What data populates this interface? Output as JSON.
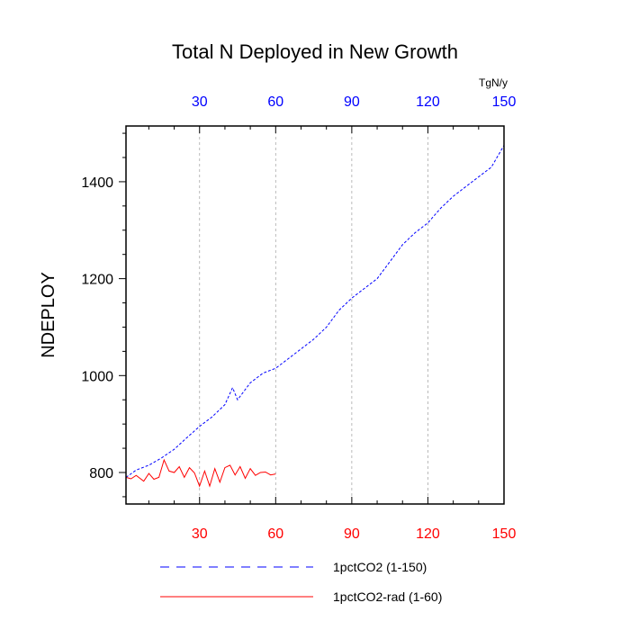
{
  "chart_data": {
    "type": "line",
    "title": "Total N Deployed in New Growth",
    "ylabel": "NDEPLOY",
    "xlabel": "",
    "top_unit_label": "TgN/y",
    "xlim": [
      1,
      150
    ],
    "ylim": [
      735,
      1515
    ],
    "grid": true,
    "top_ticks": [
      30,
      60,
      90,
      120,
      150
    ],
    "bottom_ticks": [
      30,
      60,
      90,
      120,
      150
    ],
    "left_ticks": [
      800,
      1000,
      1200,
      1400
    ],
    "legend_position": "bottom",
    "colors": {
      "series1": "#0000ff",
      "series2": "#ff0000"
    },
    "series": [
      {
        "name": "1pctCO2 (1-150)",
        "style": "dashed",
        "x": [
          1,
          5,
          10,
          15,
          20,
          25,
          30,
          35,
          40,
          43,
          45,
          50,
          55,
          60,
          65,
          70,
          75,
          80,
          85,
          90,
          95,
          100,
          105,
          110,
          115,
          120,
          125,
          130,
          135,
          140,
          145,
          150
        ],
        "y": [
          790,
          805,
          815,
          830,
          848,
          872,
          895,
          915,
          940,
          975,
          950,
          985,
          1005,
          1015,
          1035,
          1055,
          1075,
          1100,
          1135,
          1160,
          1180,
          1200,
          1235,
          1270,
          1295,
          1315,
          1345,
          1370,
          1390,
          1410,
          1430,
          1475
        ]
      },
      {
        "name": "1pctCO2-rad (1-60)",
        "style": "solid",
        "x": [
          1,
          3,
          5,
          8,
          10,
          12,
          14,
          16,
          18,
          20,
          22,
          24,
          26,
          28,
          30,
          32,
          34,
          36,
          38,
          40,
          42,
          44,
          46,
          48,
          50,
          52,
          54,
          56,
          58,
          60
        ],
        "y": [
          790,
          787,
          794,
          782,
          798,
          786,
          790,
          826,
          803,
          800,
          812,
          790,
          810,
          799,
          772,
          803,
          772,
          808,
          780,
          810,
          815,
          795,
          812,
          788,
          808,
          794,
          800,
          801,
          795,
          797
        ]
      }
    ]
  }
}
